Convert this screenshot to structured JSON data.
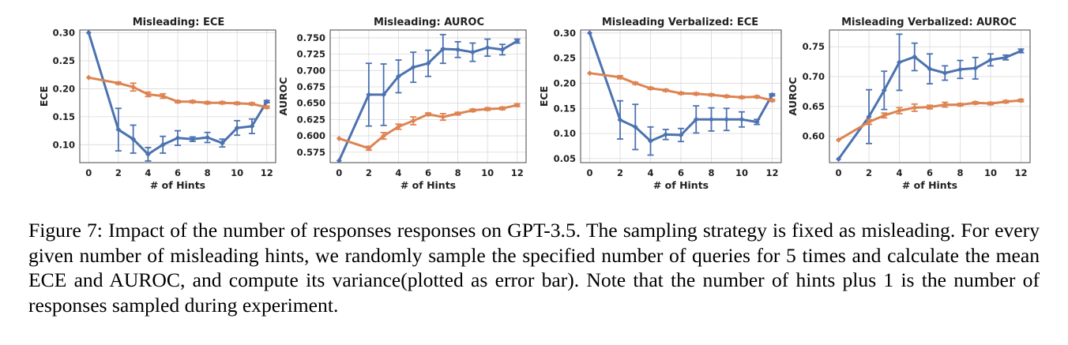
{
  "caption": {
    "text": "Figure 7: Impact of the number of responses responses on GPT-3.5. The sampling strategy is fixed as misleading. For every given number of misleading hints, we randomly sample the specified number of queries for 5 times and calculate the mean ECE and AUROC, and compute its variance(plotted as error bar). Note that the number of hints plus 1 is the number of responses sampled during experiment."
  },
  "colors": {
    "blue": "#4c72b0",
    "orange": "#dd8452",
    "grid": "#d9d9d9",
    "axis": "#444444"
  },
  "chart_data": [
    {
      "type": "line",
      "title": "Misleading: ECE",
      "xlabel": "# of Hints",
      "ylabel": "ECE",
      "xlim": [
        -0.6,
        12.6
      ],
      "ylim": [
        0.068,
        0.305
      ],
      "xticks": [
        0,
        2,
        4,
        6,
        8,
        10,
        12
      ],
      "yticks": [
        0.1,
        0.15,
        0.2,
        0.25,
        0.3
      ],
      "ytick_labels": [
        "0.10",
        "0.15",
        "0.20",
        "0.25",
        "0.30"
      ],
      "grid": true,
      "series": [
        {
          "color": "blue",
          "x": [
            0,
            2,
            3,
            4,
            5,
            6,
            7,
            8,
            9,
            10,
            11,
            12
          ],
          "y": [
            0.3,
            0.127,
            0.11,
            0.083,
            0.1,
            0.112,
            0.11,
            0.113,
            0.103,
            0.13,
            0.133,
            0.177
          ],
          "err": [
            0,
            0.038,
            0.025,
            0.012,
            0.015,
            0.013,
            0.004,
            0.009,
            0.007,
            0.013,
            0.013,
            0.002
          ]
        },
        {
          "color": "orange",
          "x": [
            0,
            2,
            3,
            4,
            5,
            6,
            7,
            8,
            9,
            10,
            11,
            12
          ],
          "y": [
            0.22,
            0.21,
            0.203,
            0.19,
            0.187,
            0.177,
            0.177,
            0.175,
            0.175,
            0.174,
            0.173,
            0.167
          ],
          "err": [
            0,
            0.002,
            0.007,
            0.004,
            0.004,
            0.002,
            0.002,
            0.002,
            0.002,
            0.002,
            0.002,
            0.002
          ]
        }
      ]
    },
    {
      "type": "line",
      "title": "Misleading: AUROC",
      "xlabel": "# of Hints",
      "ylabel": "AUROC",
      "xlim": [
        -0.6,
        12.6
      ],
      "ylim": [
        0.559,
        0.762
      ],
      "xticks": [
        0,
        2,
        4,
        6,
        8,
        10,
        12
      ],
      "yticks": [
        0.575,
        0.6,
        0.625,
        0.65,
        0.675,
        0.7,
        0.725,
        0.75
      ],
      "ytick_labels": [
        "0.575",
        "0.600",
        "0.625",
        "0.650",
        "0.675",
        "0.700",
        "0.725",
        "0.750"
      ],
      "grid": true,
      "series": [
        {
          "color": "blue",
          "x": [
            0,
            2,
            3,
            4,
            5,
            6,
            7,
            8,
            9,
            10,
            11,
            12
          ],
          "y": [
            0.562,
            0.663,
            0.663,
            0.691,
            0.705,
            0.711,
            0.733,
            0.732,
            0.728,
            0.735,
            0.732,
            0.745
          ],
          "err": [
            0,
            0.048,
            0.047,
            0.025,
            0.023,
            0.02,
            0.022,
            0.012,
            0.014,
            0.013,
            0.008,
            0.003
          ]
        },
        {
          "color": "orange",
          "x": [
            0,
            2,
            3,
            4,
            5,
            6,
            7,
            8,
            9,
            10,
            11,
            12
          ],
          "y": [
            0.596,
            0.581,
            0.6,
            0.614,
            0.623,
            0.633,
            0.629,
            0.634,
            0.639,
            0.641,
            0.642,
            0.647
          ],
          "err": [
            0,
            0.003,
            0.005,
            0.004,
            0.006,
            0.002,
            0.005,
            0.002,
            0.002,
            0.002,
            0.002,
            0.002
          ]
        }
      ]
    },
    {
      "type": "line",
      "title": "Misleading Verbalized: ECE",
      "xlabel": "# of Hints",
      "ylabel": "ECE",
      "xlim": [
        -0.6,
        12.6
      ],
      "ylim": [
        0.042,
        0.306
      ],
      "xticks": [
        0,
        2,
        4,
        6,
        8,
        10,
        12
      ],
      "yticks": [
        0.05,
        0.1,
        0.15,
        0.2,
        0.25,
        0.3
      ],
      "ytick_labels": [
        "0.05",
        "0.10",
        "0.15",
        "0.20",
        "0.25",
        "0.30"
      ],
      "grid": true,
      "series": [
        {
          "color": "blue",
          "x": [
            0,
            2,
            3,
            4,
            5,
            6,
            7,
            8,
            9,
            10,
            11,
            12
          ],
          "y": [
            0.3,
            0.127,
            0.113,
            0.085,
            0.098,
            0.097,
            0.128,
            0.128,
            0.128,
            0.128,
            0.123,
            0.177
          ],
          "err": [
            0,
            0.038,
            0.045,
            0.028,
            0.01,
            0.013,
            0.027,
            0.023,
            0.022,
            0.015,
            0.005,
            0.002
          ]
        },
        {
          "color": "orange",
          "x": [
            0,
            2,
            3,
            4,
            5,
            6,
            7,
            8,
            9,
            10,
            11,
            12
          ],
          "y": [
            0.22,
            0.212,
            0.2,
            0.19,
            0.186,
            0.18,
            0.179,
            0.177,
            0.174,
            0.172,
            0.173,
            0.166
          ],
          "err": [
            0,
            0.003,
            0.002,
            0.002,
            0.002,
            0.002,
            0.002,
            0.002,
            0.002,
            0.002,
            0.002,
            0.002
          ]
        }
      ]
    },
    {
      "type": "line",
      "title": "Misleading Verbalized: AUROC",
      "xlabel": "# of Hints",
      "ylabel": "AUROC",
      "xlim": [
        -0.6,
        12.6
      ],
      "ylim": [
        0.556,
        0.778
      ],
      "xticks": [
        0,
        2,
        4,
        6,
        8,
        10,
        12
      ],
      "yticks": [
        0.6,
        0.65,
        0.7,
        0.75
      ],
      "ytick_labels": [
        "0.60",
        "0.65",
        "0.70",
        "0.75"
      ],
      "grid": true,
      "series": [
        {
          "color": "blue",
          "x": [
            0,
            2,
            3,
            4,
            5,
            6,
            7,
            8,
            9,
            10,
            11,
            12
          ],
          "y": [
            0.562,
            0.633,
            0.677,
            0.724,
            0.733,
            0.713,
            0.706,
            0.712,
            0.714,
            0.728,
            0.732,
            0.743
          ],
          "err": [
            0,
            0.045,
            0.032,
            0.047,
            0.023,
            0.025,
            0.012,
            0.015,
            0.018,
            0.01,
            0.004,
            0.003
          ]
        },
        {
          "color": "orange",
          "x": [
            0,
            2,
            3,
            4,
            5,
            6,
            7,
            8,
            9,
            10,
            11,
            12
          ],
          "y": [
            0.594,
            0.624,
            0.635,
            0.643,
            0.648,
            0.649,
            0.653,
            0.653,
            0.656,
            0.655,
            0.658,
            0.66
          ],
          "err": [
            0,
            0.004,
            0.004,
            0.005,
            0.006,
            0.003,
            0.004,
            0.002,
            0.002,
            0.002,
            0.002,
            0.002
          ]
        }
      ]
    }
  ]
}
